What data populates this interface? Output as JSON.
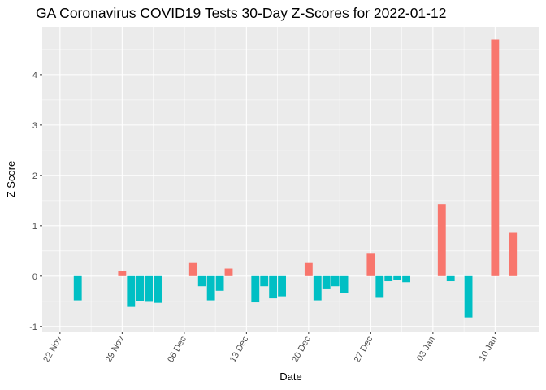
{
  "chart_data": {
    "type": "bar",
    "title": "GA Coronavirus COVID19 Tests 30-Day Z-Scores for 2022-01-12",
    "xlabel": "Date",
    "ylabel": "Z Score",
    "ylim": [
      -1.1,
      4.95
    ],
    "yticks": [
      -1,
      0,
      1,
      2,
      3,
      4
    ],
    "grid": true,
    "legend": "none",
    "colors": {
      "positive": "#F8766D",
      "negative": "#00BFC4",
      "panel": "#EBEBEB",
      "grid": "#FFFFFF"
    },
    "x_ticks": [
      {
        "date": "2021-11-22",
        "label": "22 Nov"
      },
      {
        "date": "2021-11-29",
        "label": "29 Nov"
      },
      {
        "date": "2021-12-06",
        "label": "06 Dec"
      },
      {
        "date": "2021-12-13",
        "label": "13 Dec"
      },
      {
        "date": "2021-12-20",
        "label": "20 Dec"
      },
      {
        "date": "2021-12-27",
        "label": "27 Dec"
      },
      {
        "date": "2022-01-03",
        "label": "03 Jan"
      },
      {
        "date": "2022-01-10",
        "label": "10 Jan"
      }
    ],
    "x_range": [
      "2021-11-20",
      "2022-01-15"
    ],
    "bars": [
      {
        "date": "2021-11-24",
        "value": -0.48
      },
      {
        "date": "2021-11-29",
        "value": 0.1
      },
      {
        "date": "2021-11-30",
        "value": -0.61
      },
      {
        "date": "2021-12-01",
        "value": -0.5
      },
      {
        "date": "2021-12-02",
        "value": -0.51
      },
      {
        "date": "2021-12-03",
        "value": -0.53
      },
      {
        "date": "2021-12-07",
        "value": 0.26
      },
      {
        "date": "2021-12-08",
        "value": -0.2
      },
      {
        "date": "2021-12-09",
        "value": -0.48
      },
      {
        "date": "2021-12-10",
        "value": -0.29
      },
      {
        "date": "2021-12-11",
        "value": 0.15
      },
      {
        "date": "2021-12-14",
        "value": -0.52
      },
      {
        "date": "2021-12-15",
        "value": -0.2
      },
      {
        "date": "2021-12-16",
        "value": -0.44
      },
      {
        "date": "2021-12-17",
        "value": -0.4
      },
      {
        "date": "2021-12-20",
        "value": 0.26
      },
      {
        "date": "2021-12-21",
        "value": -0.48
      },
      {
        "date": "2021-12-22",
        "value": -0.26
      },
      {
        "date": "2021-12-23",
        "value": -0.2
      },
      {
        "date": "2021-12-24",
        "value": -0.33
      },
      {
        "date": "2021-12-27",
        "value": 0.46
      },
      {
        "date": "2021-12-28",
        "value": -0.43
      },
      {
        "date": "2021-12-29",
        "value": -0.1
      },
      {
        "date": "2021-12-30",
        "value": -0.08
      },
      {
        "date": "2021-12-31",
        "value": -0.12
      },
      {
        "date": "2022-01-04",
        "value": 1.43
      },
      {
        "date": "2022-01-05",
        "value": -0.1
      },
      {
        "date": "2022-01-07",
        "value": -0.82
      },
      {
        "date": "2022-01-10",
        "value": 4.7
      },
      {
        "date": "2022-01-12",
        "value": 0.86
      }
    ]
  }
}
